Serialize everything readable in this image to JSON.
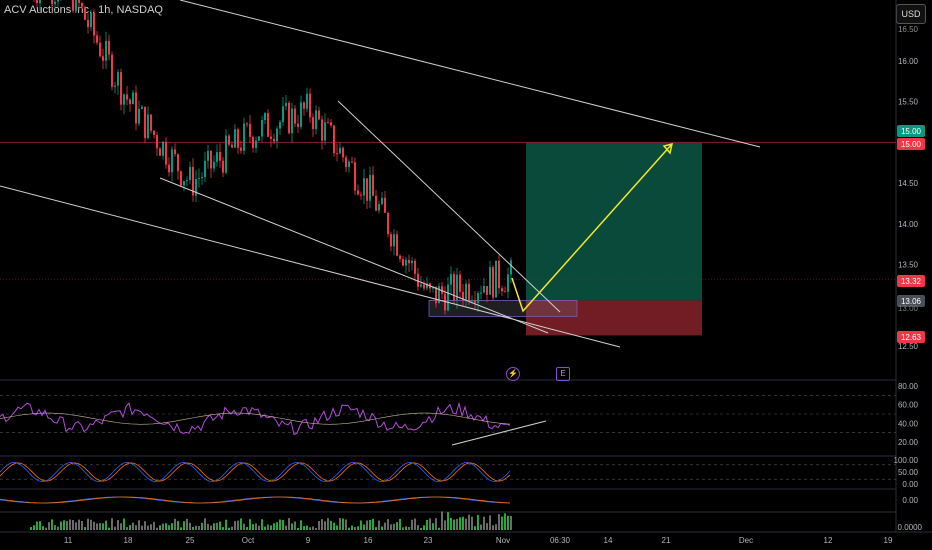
{
  "header": {
    "title": "ACV Auctions Inc., 1h, NASDAQ",
    "currency_button": "USD"
  },
  "price_axis": {
    "labels": [
      "16.00",
      "15.50",
      "14.50",
      "14.00",
      "13.50",
      "12.50"
    ],
    "clipped_top": "16.50",
    "tags": [
      {
        "value": "15.00",
        "color": "#089981"
      },
      {
        "value": "15.00",
        "color": "#f23645"
      },
      {
        "value": "13.32",
        "color": "#f23645"
      },
      {
        "value": "13.06",
        "color": "#4a4e59"
      },
      {
        "value": "12.63",
        "color": "#f23645"
      }
    ],
    "clipped_tag": "13.00"
  },
  "time_axis": {
    "labels": [
      "11",
      "18",
      "25",
      "Oct",
      "9",
      "16",
      "23",
      "Nov",
      "06:30",
      "14",
      "21",
      "Dec",
      "12",
      "19"
    ]
  },
  "events": {
    "split_icon": "⚡",
    "earnings_icon": "E"
  },
  "panes": {
    "rsi": {
      "labels": [
        "80.00",
        "60.00",
        "40.00",
        "20.00"
      ]
    },
    "stoch": {
      "labels": [
        "100.00",
        "50.00",
        "0.00"
      ]
    },
    "macd": {
      "labels": [
        "0.00"
      ]
    },
    "volume": {
      "labels": [
        "0.0000"
      ]
    }
  },
  "colors": {
    "bull": "#089981",
    "bear": "#f23645",
    "target_zone": "#0a4a3b",
    "stop_zone": "#721d24",
    "arrow": "#f5e62a",
    "rsi": "#b349dc",
    "trend": "#cfcfcf"
  },
  "chart_data": {
    "type": "candlestick",
    "interval": "1h",
    "close_path": [
      [
        "11",
        16.9
      ],
      [
        "18",
        15.5
      ],
      [
        "25",
        14.5
      ],
      [
        "Oct",
        15.1
      ],
      [
        "9",
        15.4
      ],
      [
        "16",
        14.4
      ],
      [
        "23",
        13.1
      ],
      [
        "Nov",
        13.35
      ]
    ],
    "position": {
      "entry": 13.06,
      "target": 15.0,
      "stop": 12.63,
      "last": 13.32
    },
    "ylim": [
      12.3,
      16.6
    ],
    "rsi_range": [
      20,
      80
    ]
  }
}
